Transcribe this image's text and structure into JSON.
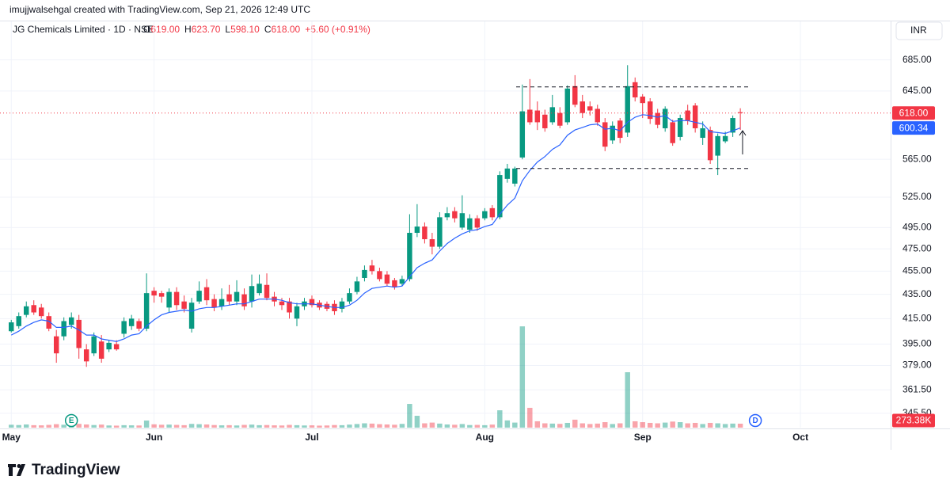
{
  "header": {
    "attribution": "imujjwalsehgal created with TradingView.com, Sep 21, 2026 12:49 UTC",
    "symbol": "JG Chemicals Limited · 1D · NSE",
    "ohlc": [
      {
        "key": "O",
        "value": "619.00"
      },
      {
        "key": "H",
        "value": "623.70"
      },
      {
        "key": "L",
        "value": "598.10"
      },
      {
        "key": "C",
        "value": "618.00"
      }
    ],
    "change": "+5.60 (+0.91%)",
    "currency": "INR"
  },
  "footer": {
    "logo": "TradingView"
  },
  "chart_data": {
    "type": "candlestick",
    "log": true,
    "grid": true,
    "up_color": "#089981",
    "down_color": "#f23645",
    "ma_color": "#2962ff",
    "ylim": [
      336,
      738
    ],
    "yticks": [
      {
        "value": 685,
        "label": "685.00"
      },
      {
        "value": 645,
        "label": "645.00"
      },
      {
        "value": 565,
        "label": "565.00"
      },
      {
        "value": 525,
        "label": "525.00"
      },
      {
        "value": 495,
        "label": "495.00"
      },
      {
        "value": 475,
        "label": "475.00"
      },
      {
        "value": 455,
        "label": "455.00"
      },
      {
        "value": 435,
        "label": "435.00"
      },
      {
        "value": 415,
        "label": "415.00"
      },
      {
        "value": 395,
        "label": "395.00"
      },
      {
        "value": 379,
        "label": "379.00"
      },
      {
        "value": 361.5,
        "label": "361.50"
      },
      {
        "value": 345.5,
        "label": "345.50"
      }
    ],
    "xlim": [
      -1.5,
      117
    ],
    "xticks": [
      {
        "value": 0,
        "label": "May"
      },
      {
        "value": 19,
        "label": "Jun"
      },
      {
        "value": 40,
        "label": "Jul"
      },
      {
        "value": 63,
        "label": "Aug"
      },
      {
        "value": 84,
        "label": "Sep"
      },
      {
        "value": 105,
        "label": "Oct"
      }
    ],
    "open": [
      405,
      409,
      418,
      426,
      424,
      417,
      401,
      401,
      410,
      414,
      391,
      388,
      397,
      391,
      395,
      403,
      409,
      413,
      407,
      438,
      436,
      424,
      437,
      429,
      407,
      429,
      441,
      431,
      425,
      435,
      429,
      435,
      429,
      436,
      443,
      433,
      429,
      429,
      415,
      425,
      431,
      428,
      427,
      427,
      423,
      429,
      437,
      449,
      460,
      455,
      452,
      447,
      444,
      448,
      490,
      496,
      484,
      477,
      505,
      511,
      495,
      493,
      504,
      504,
      514,
      505,
      544,
      539,
      567,
      622,
      621,
      616,
      607,
      618,
      607,
      651,
      632,
      626,
      623,
      607,
      586,
      609,
      595,
      656,
      638,
      632,
      618,
      600,
      607,
      590,
      621,
      627,
      589,
      598,
      569,
      585,
      595,
      619
    ],
    "high": [
      414,
      420,
      429,
      430,
      427,
      420,
      406,
      416,
      420,
      418,
      395,
      404,
      402,
      398,
      398,
      416,
      418,
      415,
      453,
      441,
      438,
      440,
      441,
      434,
      432,
      446,
      448,
      435,
      440,
      443,
      447,
      440,
      452,
      452,
      453,
      437,
      432,
      432,
      428,
      432,
      434,
      430,
      429,
      430,
      432,
      440,
      450,
      460,
      465,
      458,
      455,
      449,
      451,
      508,
      518,
      500,
      490,
      510,
      515,
      515,
      527,
      508,
      507,
      514,
      517,
      552,
      560,
      557,
      653,
      660,
      632,
      622,
      640,
      625,
      652,
      665,
      640,
      632,
      628,
      612,
      608,
      612,
      678,
      662,
      641,
      636,
      623,
      626,
      610,
      616,
      628,
      630,
      608,
      602,
      594,
      596,
      615,
      623.7
    ],
    "low": [
      404,
      407,
      416,
      418,
      415,
      405,
      381,
      398,
      407,
      384,
      378,
      386,
      381,
      389,
      390,
      400,
      406,
      405,
      405,
      428,
      428,
      420,
      422,
      420,
      404,
      427,
      426,
      421,
      422,
      426,
      426,
      422,
      424,
      434,
      430,
      425,
      422,
      415,
      409,
      422,
      424,
      422,
      421,
      418,
      420,
      427,
      435,
      446,
      452,
      446,
      442,
      439,
      442,
      446,
      486,
      480,
      470,
      475,
      502,
      500,
      493,
      490,
      492,
      502,
      502,
      503,
      540,
      536,
      565,
      604,
      598,
      596,
      604,
      600,
      604,
      625,
      612,
      615,
      603,
      574,
      582,
      583,
      590,
      632,
      612,
      605,
      600,
      596,
      580,
      586,
      604,
      595,
      581,
      560,
      548,
      583,
      590,
      598.1
    ],
    "close": [
      412,
      417,
      425,
      420,
      417,
      407,
      388,
      413,
      416,
      392,
      382,
      401,
      384,
      396,
      391,
      413,
      415,
      407,
      436,
      434,
      433,
      437,
      426,
      423,
      428,
      438,
      430,
      424,
      431,
      429,
      437,
      425,
      442,
      444,
      432,
      429,
      426,
      420,
      425,
      429,
      426,
      424,
      423,
      421,
      429,
      436,
      446,
      456,
      455,
      448,
      444,
      441,
      448,
      490,
      496,
      484,
      477,
      505,
      509,
      504,
      509,
      504,
      495,
      511,
      505,
      548,
      555,
      555,
      620,
      607,
      607,
      600,
      625,
      603,
      648,
      628,
      618,
      621,
      607,
      579,
      603,
      589,
      651,
      637,
      630,
      611,
      604,
      623,
      583,
      612,
      609,
      600,
      600,
      564,
      591,
      591,
      612,
      618
    ],
    "ma": [
      402,
      405,
      409,
      412,
      414,
      413,
      408,
      408,
      409,
      406,
      402,
      402,
      399,
      398,
      397,
      399,
      402,
      403,
      409,
      414,
      418,
      420,
      421,
      422,
      421,
      423,
      424,
      424,
      425,
      426,
      427,
      427,
      429,
      431,
      431,
      431,
      430,
      428,
      427,
      427,
      427,
      426,
      425,
      424,
      424,
      426,
      430,
      436,
      440,
      441,
      442,
      441,
      442,
      450,
      458,
      462,
      465,
      473,
      480,
      485,
      489,
      492,
      493,
      496,
      498,
      508,
      517,
      524,
      542,
      553,
      562,
      568,
      576,
      581,
      592,
      598,
      601,
      604,
      605,
      599,
      600,
      597,
      607,
      613,
      616,
      615,
      613,
      615,
      608,
      609,
      609,
      607,
      605,
      596,
      595,
      594,
      597,
      600.34
    ],
    "volume": [
      200,
      180,
      220,
      170,
      160,
      190,
      240,
      200,
      150,
      260,
      220,
      180,
      210,
      150,
      140,
      170,
      160,
      150,
      490,
      230,
      200,
      210,
      190,
      170,
      260,
      240,
      220,
      180,
      160,
      170,
      150,
      190,
      210,
      170,
      180,
      160,
      150,
      190,
      170,
      150,
      160,
      140,
      150,
      180,
      170,
      210,
      250,
      300,
      280,
      240,
      220,
      200,
      260,
      1640,
      820,
      300,
      350,
      280,
      220,
      200,
      250,
      180,
      190,
      170,
      210,
      1200,
      500,
      350,
      7000,
      1370,
      440,
      300,
      280,
      260,
      330,
      550,
      300,
      250,
      280,
      380,
      250,
      300,
      3830,
      440,
      380,
      330,
      300,
      350,
      420,
      380,
      300,
      330,
      250,
      330,
      300,
      250,
      280,
      273.38
    ],
    "volume_lim": [
      0,
      11000
    ],
    "levels": [
      650,
      555
    ],
    "price_label": {
      "value": 618,
      "label": "618.00"
    },
    "ma_label": {
      "value": 600.34,
      "label": "600.34"
    },
    "volume_label": {
      "value": 273.38,
      "label": "273.38K"
    },
    "events": [
      {
        "label": "E",
        "index": 8,
        "color": "#089981"
      },
      {
        "label": "D",
        "index": 99,
        "color": "#2962ff"
      }
    ]
  }
}
